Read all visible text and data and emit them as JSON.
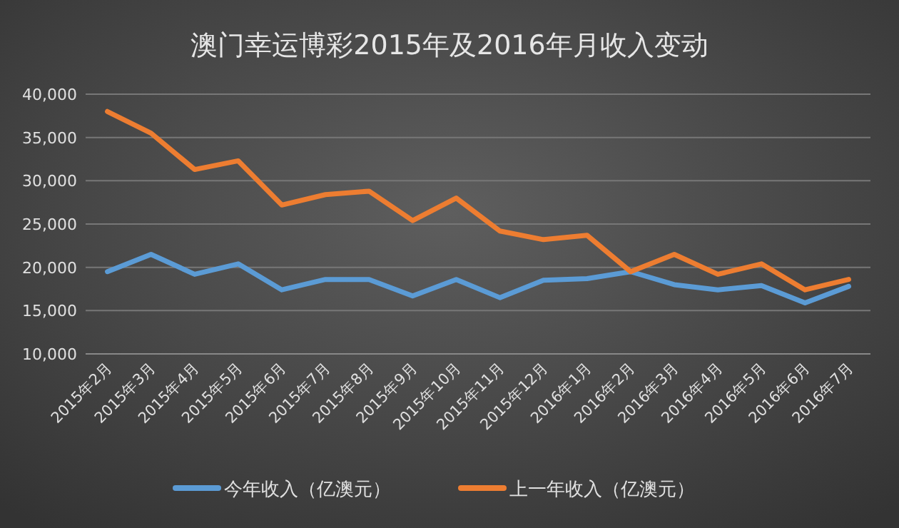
{
  "chart_data": {
    "type": "line",
    "title": "澳门幸运博彩2015年及2016年月收入变动",
    "categories": [
      "2015年2月",
      "2015年3月",
      "2015年4月",
      "2015年5月",
      "2015年6月",
      "2015年7月",
      "2015年8月",
      "2015年9月",
      "2015年10月",
      "2015年11月",
      "2015年12月",
      "2016年1月",
      "2016年2月",
      "2016年3月",
      "2016年4月",
      "2016年5月",
      "2016年6月",
      "2016年7月"
    ],
    "series": [
      {
        "name": "今年收入（亿澳元）",
        "color": "#5b9bd5",
        "values": [
          19500,
          21500,
          19200,
          20400,
          17400,
          18600,
          18600,
          16700,
          18600,
          16500,
          18500,
          18700,
          19500,
          18000,
          17400,
          17900,
          15900,
          17800
        ]
      },
      {
        "name": "上一年收入（亿澳元）",
        "color": "#ed7d31",
        "values": [
          38000,
          35500,
          31300,
          32300,
          27200,
          28400,
          28800,
          25400,
          28000,
          24200,
          23200,
          23700,
          19500,
          21500,
          19200,
          20400,
          17400,
          18600
        ]
      }
    ],
    "ylim": [
      10000,
      40000
    ],
    "yticks": [
      {
        "value": 10000,
        "label": "10,000"
      },
      {
        "value": 15000,
        "label": "15,000"
      },
      {
        "value": 20000,
        "label": "20,000"
      },
      {
        "value": 25000,
        "label": "25,000"
      },
      {
        "value": 30000,
        "label": "30,000"
      },
      {
        "value": 35000,
        "label": "35,000"
      },
      {
        "value": 40000,
        "label": "40,000"
      }
    ],
    "grid": "y",
    "legend": "bottom",
    "marker": "none",
    "line_style": "solid"
  }
}
